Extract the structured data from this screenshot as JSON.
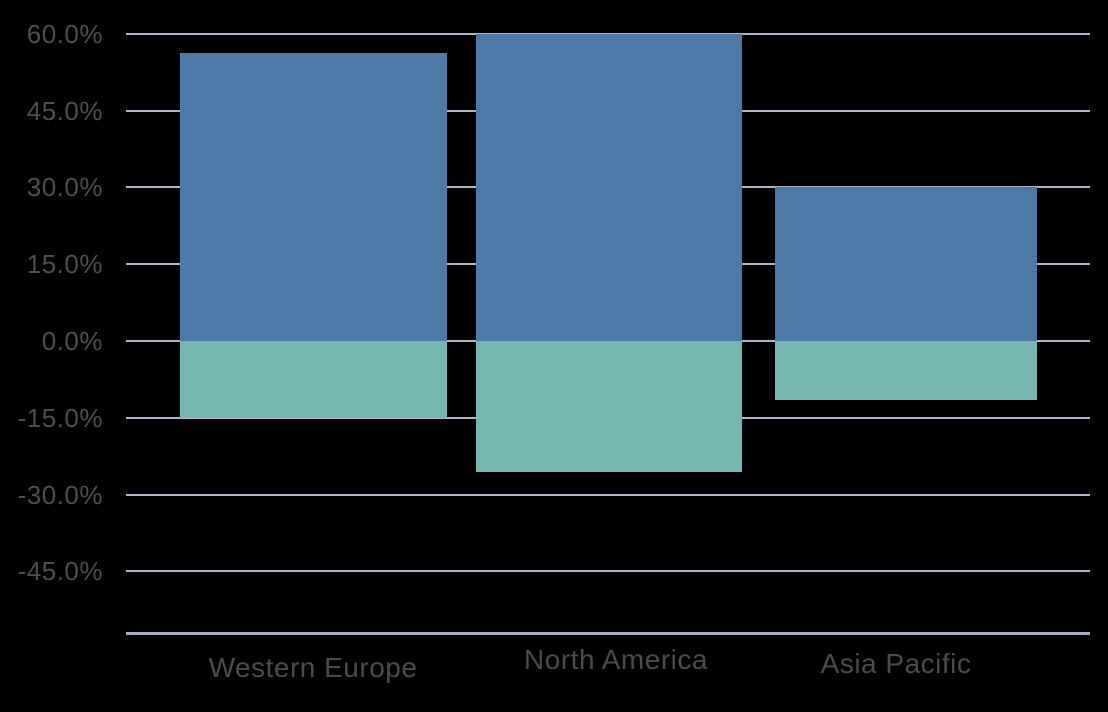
{
  "colors": {
    "background": "#000000",
    "positive_bar": "#4E79A7",
    "negative_bar": "#76B7B2",
    "gridline": "#AEB3C6",
    "axis_line": "#A9AFC2",
    "tick_text": "#514D4B",
    "category_text": "#4E4A47"
  },
  "chart_data": {
    "type": "bar",
    "title": "",
    "xlabel": "",
    "ylabel": "",
    "categories": [
      "Western Europe",
      "North America",
      "Asia Pacific"
    ],
    "series": [
      {
        "name": "positive",
        "color": "#4E79A7",
        "values": [
          56.3,
          60.0,
          30.0
        ]
      },
      {
        "name": "negative",
        "color": "#76B7B2",
        "values": [
          -15.0,
          -25.5,
          -11.5
        ]
      }
    ],
    "y_ticks": [
      {
        "value": 60,
        "label": "60.0%"
      },
      {
        "value": 45,
        "label": "45.0%"
      },
      {
        "value": 30,
        "label": "30.0%"
      },
      {
        "value": 15,
        "label": "15.0%"
      },
      {
        "value": 0,
        "label": "0.0%"
      },
      {
        "value": -15,
        "label": "-15.0%"
      },
      {
        "value": -30,
        "label": "-30.0%"
      },
      {
        "value": -45,
        "label": "-45.0%"
      }
    ],
    "ylim": [
      -57.5,
      60
    ],
    "grid": true,
    "legend": false,
    "value_format": "percent_one_decimal"
  }
}
